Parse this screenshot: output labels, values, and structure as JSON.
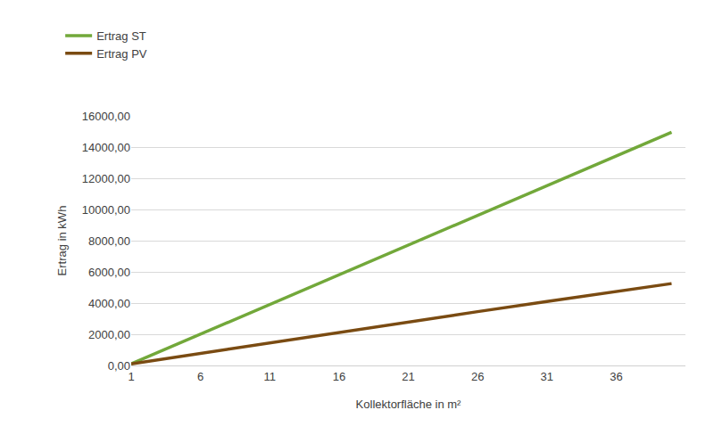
{
  "chart_data": {
    "type": "line",
    "x_label": "Kollektorfläche in m²",
    "y_label": "Ertrag in kWh",
    "x": [
      1,
      6,
      11,
      16,
      21,
      26,
      31,
      36,
      40
    ],
    "series": [
      {
        "name": "Ertrag ST",
        "color": "#72a83a",
        "values": [
          100,
          2000,
          3900,
          5800,
          7700,
          9600,
          11500,
          13400,
          14950
        ]
      },
      {
        "name": "Ertrag PV",
        "color": "#7a4b12",
        "values": [
          100,
          780,
          1450,
          2100,
          2800,
          3450,
          4100,
          4750,
          5250
        ]
      }
    ],
    "xlim": [
      1,
      41
    ],
    "xticks": [
      1,
      6,
      11,
      16,
      21,
      26,
      31,
      36
    ],
    "ylim": [
      0,
      16000
    ],
    "yticks": [
      {
        "value": 0,
        "label": "0,00"
      },
      {
        "value": 2000,
        "label": "2000,00"
      },
      {
        "value": 4000,
        "label": "4000,00"
      },
      {
        "value": 6000,
        "label": "6000,00"
      },
      {
        "value": 8000,
        "label": "8000,00"
      },
      {
        "value": 10000,
        "label": "10000,00"
      },
      {
        "value": 12000,
        "label": "12000,00"
      },
      {
        "value": 14000,
        "label": "14000,00"
      },
      {
        "value": 16000,
        "label": "16000,00"
      }
    ],
    "grid": true,
    "legend": "top-left"
  }
}
